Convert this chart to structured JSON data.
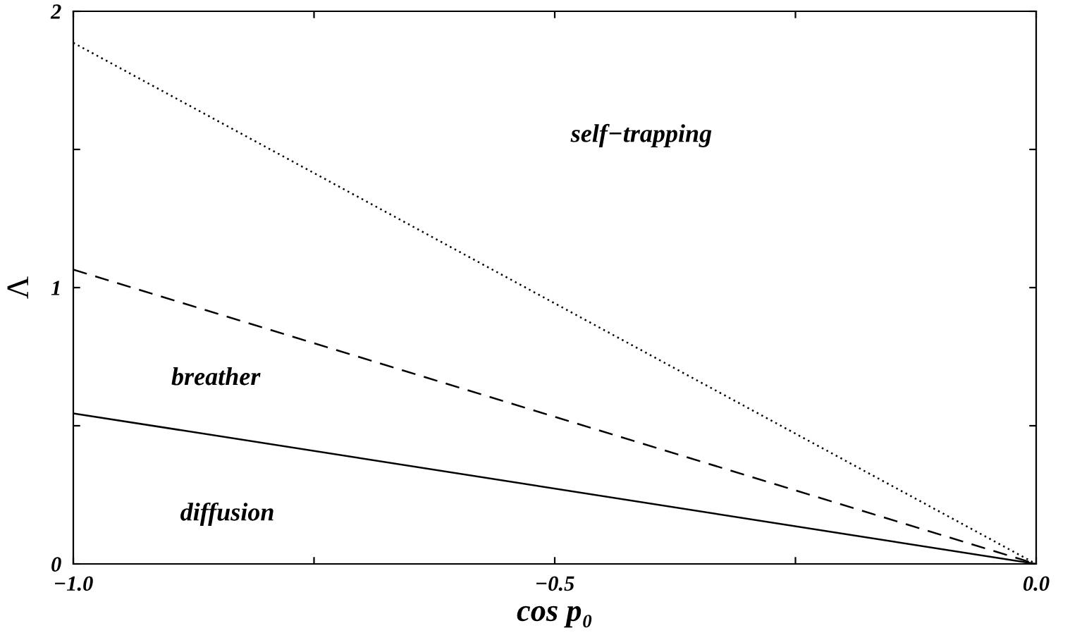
{
  "chart_data": {
    "type": "line",
    "xlabel": "cos p₀",
    "ylabel": "Λ",
    "x": [
      -1.0,
      0.0
    ],
    "series": [
      {
        "values": [
          0.545,
          0.0
        ],
        "color": "#000000",
        "line_style": "solid"
      },
      {
        "values": [
          1.065,
          0.0
        ],
        "color": "#000000",
        "line_style": "dashed"
      },
      {
        "values": [
          1.886,
          0.0
        ],
        "color": "#000000",
        "line_style": "dotted"
      }
    ],
    "xlim": [
      -1.0,
      0.0
    ],
    "ylim": [
      0,
      2
    ],
    "xticks": [
      {
        "value": -1.0,
        "label": "−1.0"
      },
      {
        "value": -0.75,
        "label": null
      },
      {
        "value": -0.5,
        "label": "−0.5"
      },
      {
        "value": -0.25,
        "label": null
      },
      {
        "value": 0.0,
        "label": "0.0"
      }
    ],
    "yticks": [
      0,
      {
        "value": 0.5,
        "label": null
      },
      1,
      {
        "value": 1.5,
        "label": null
      },
      2
    ],
    "annotations": [
      "self−trapping",
      "breather",
      "diffusion"
    ],
    "grid": false,
    "legend": false,
    "marker": "none"
  }
}
